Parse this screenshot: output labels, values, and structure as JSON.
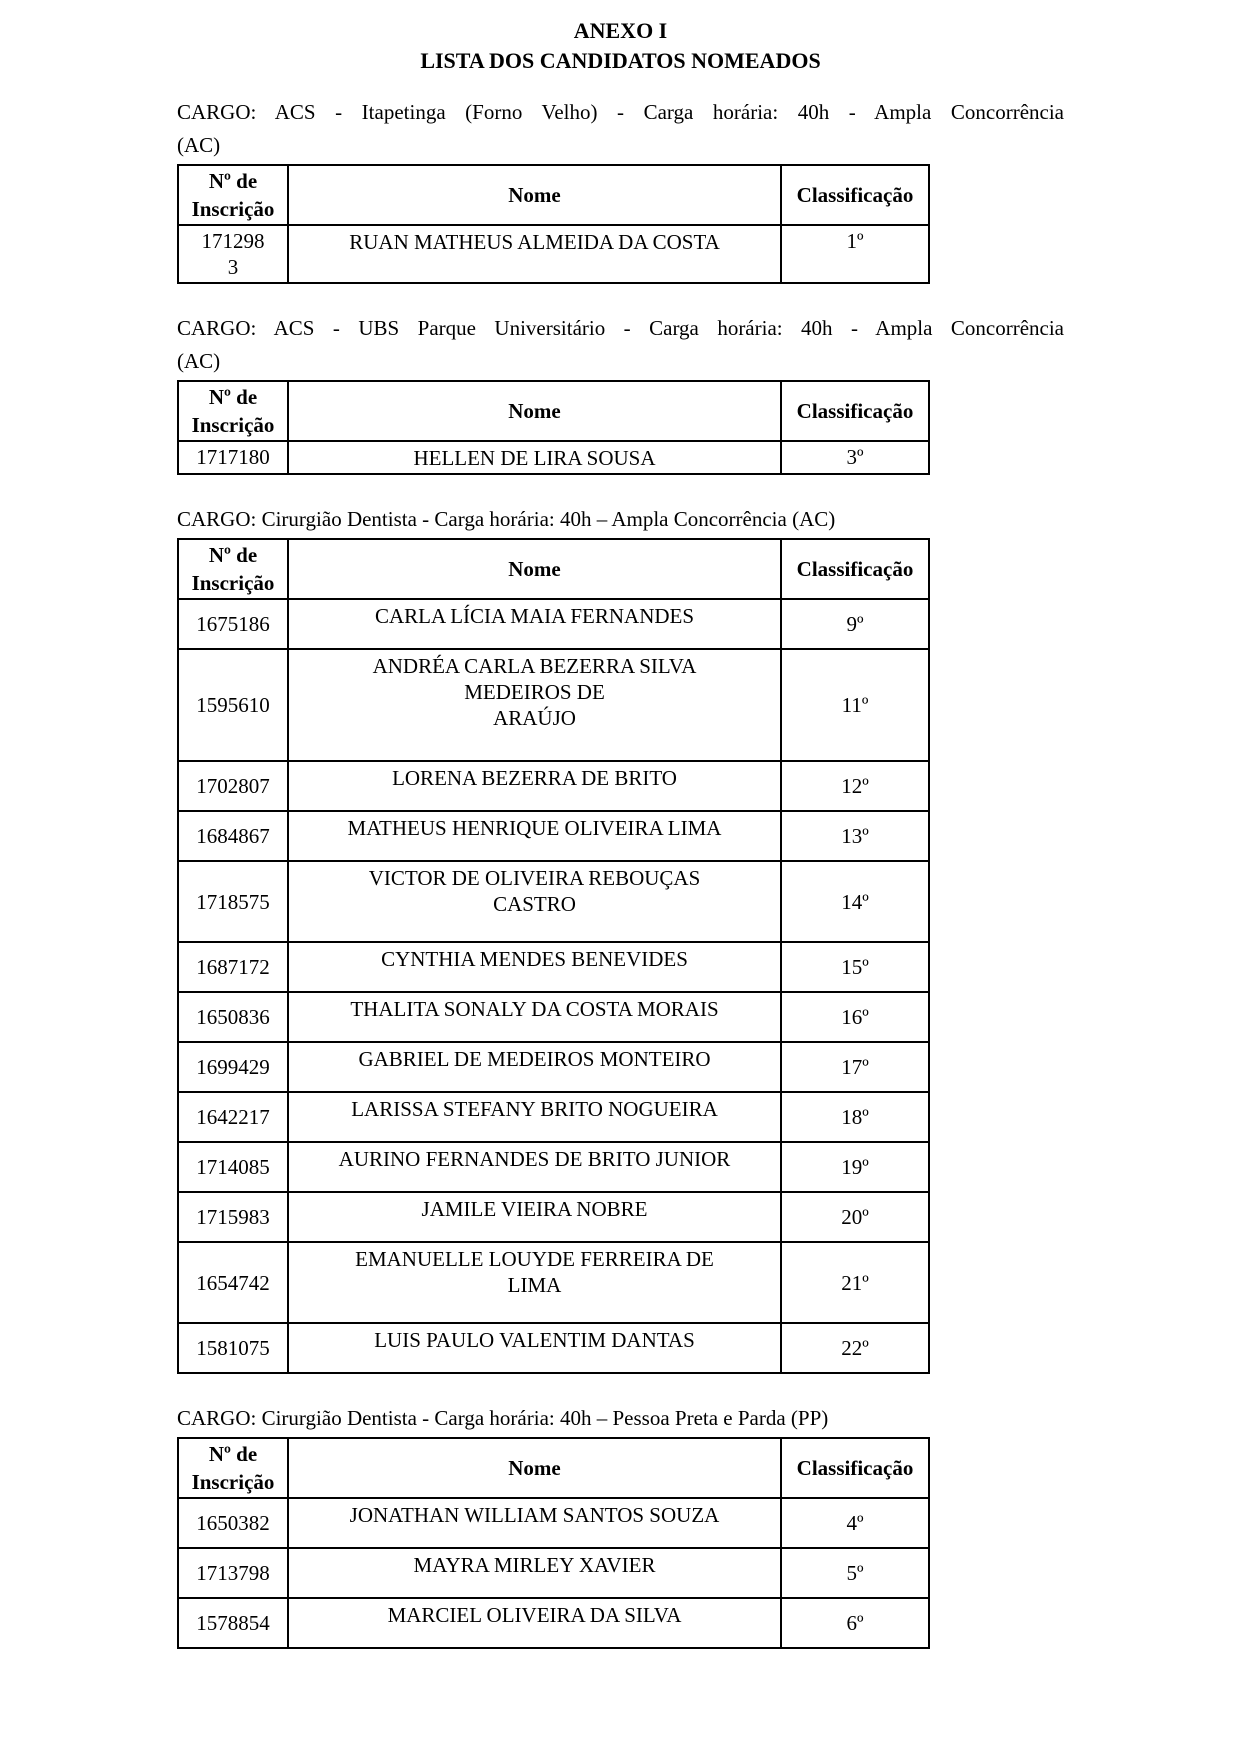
{
  "document": {
    "title_line1": "ANEXO I",
    "title_line2": "LISTA DOS CANDIDATOS NOMEADOS"
  },
  "columns": {
    "inscricao": "Nº de Inscrição",
    "nome": "Nome",
    "classificacao": "Classificação"
  },
  "sections": [
    {
      "cargo_line1": "CARGO: ACS - Itapetinga (Forno Velho) - Carga horária: 40h - Ampla Concorrência",
      "cargo_line2": "(AC)",
      "rows": [
        {
          "inscricao": "171298\n3",
          "nome": "RUAN MATHEUS ALMEIDA DA COSTA",
          "classificacao": "1º"
        }
      ]
    },
    {
      "cargo_line1": "CARGO: ACS - UBS Parque Universitário - Carga horária: 40h - Ampla Concorrência",
      "cargo_line2": "(AC)",
      "rows": [
        {
          "inscricao": "1717180",
          "nome": "HELLEN DE LIRA SOUSA",
          "classificacao": "3º"
        }
      ]
    },
    {
      "cargo_line1": "CARGO: Cirurgião Dentista - Carga horária: 40h – Ampla Concorrência (AC)",
      "rows": [
        {
          "inscricao": "1675186",
          "nome": "CARLA LÍCIA MAIA FERNANDES",
          "classificacao": "9º"
        },
        {
          "inscricao": "1595610",
          "nome": "ANDRÉA CARLA BEZERRA SILVA\nMEDEIROS DE\nARAÚJO",
          "classificacao": "11º"
        },
        {
          "inscricao": "1702807",
          "nome": "LORENA BEZERRA DE BRITO",
          "classificacao": "12º"
        },
        {
          "inscricao": "1684867",
          "nome": "MATHEUS HENRIQUE OLIVEIRA LIMA",
          "classificacao": "13º"
        },
        {
          "inscricao": "1718575",
          "nome": "VICTOR DE OLIVEIRA REBOUÇAS\nCASTRO",
          "classificacao": "14º"
        },
        {
          "inscricao": "1687172",
          "nome": "CYNTHIA MENDES BENEVIDES",
          "classificacao": "15º"
        },
        {
          "inscricao": "1650836",
          "nome": "THALITA SONALY DA COSTA MORAIS",
          "classificacao": "16º"
        },
        {
          "inscricao": "1699429",
          "nome": "GABRIEL DE MEDEIROS MONTEIRO",
          "classificacao": "17º"
        },
        {
          "inscricao": "1642217",
          "nome": "LARISSA STEFANY BRITO NOGUEIRA",
          "classificacao": "18º"
        },
        {
          "inscricao": "1714085",
          "nome": "AURINO FERNANDES DE BRITO JUNIOR",
          "classificacao": "19º"
        },
        {
          "inscricao": "1715983",
          "nome": "JAMILE VIEIRA NOBRE",
          "classificacao": "20º"
        },
        {
          "inscricao": "1654742",
          "nome": "EMANUELLE LOUYDE FERREIRA DE\nLIMA",
          "classificacao": "21º"
        },
        {
          "inscricao": "1581075",
          "nome": "LUIS PAULO VALENTIM DANTAS",
          "classificacao": "22º"
        }
      ]
    },
    {
      "cargo_line1": "CARGO: Cirurgião Dentista - Carga horária: 40h – Pessoa Preta e Parda (PP)",
      "rows": [
        {
          "inscricao": "1650382",
          "nome": "JONATHAN WILLIAM SANTOS SOUZA",
          "classificacao": "4º"
        },
        {
          "inscricao": "1713798",
          "nome": "MAYRA MIRLEY XAVIER",
          "classificacao": "5º"
        },
        {
          "inscricao": "1578854",
          "nome": "MARCIEL OLIVEIRA DA SILVA",
          "classificacao": "6º"
        }
      ]
    }
  ]
}
